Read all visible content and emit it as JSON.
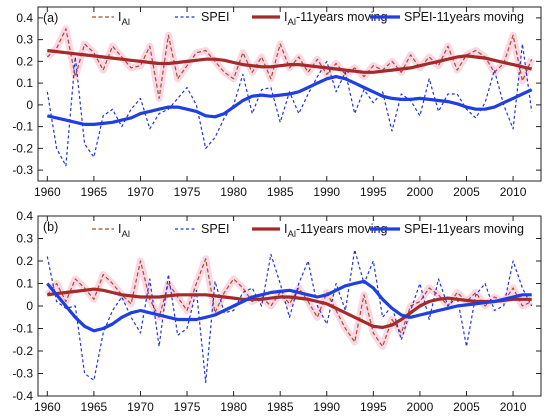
{
  "colors": {
    "ial_dashed": "#a0522d",
    "spei_dashed": "#2233dd",
    "ial_moving": "#a52a2a",
    "spei_moving": "#1f3fe0",
    "highlight": "#f7b4d0",
    "axes": "#222222"
  },
  "chart_data": [
    {
      "type": "line",
      "panel_label": "(a)",
      "legend": {
        "placement": "top",
        "entries": [
          {
            "base": "I",
            "sub": "Al",
            "suffix": ""
          },
          {
            "base": "SPEI",
            "sub": "",
            "suffix": ""
          },
          {
            "base": "I",
            "sub": "Al",
            "suffix": "-11years moving"
          },
          {
            "base": "SPEI-11years moving",
            "sub": "",
            "suffix": ""
          }
        ]
      },
      "xlim": [
        1959,
        2013
      ],
      "ylim": [
        -0.35,
        0.45
      ],
      "xticks": [
        1960,
        1965,
        1970,
        1975,
        1980,
        1985,
        1990,
        1995,
        2000,
        2005,
        2010
      ],
      "xtick_labels": [
        "1960",
        "1965",
        "1970",
        "1975",
        "1980",
        "1985",
        "1990",
        "1995",
        "2000",
        "2005",
        "2010"
      ],
      "yticks": [
        -0.3,
        -0.2,
        -0.1,
        0,
        0.1,
        0.2,
        0.3,
        0.4
      ],
      "ytick_labels": [
        "-0.3",
        "-0.2",
        "-0.1",
        "0",
        "0.1",
        "0.2",
        "0.3",
        "0.4"
      ],
      "grid": false,
      "x": [
        1960,
        1961,
        1962,
        1963,
        1964,
        1965,
        1966,
        1967,
        1968,
        1969,
        1970,
        1971,
        1972,
        1973,
        1974,
        1975,
        1976,
        1977,
        1978,
        1979,
        1980,
        1981,
        1982,
        1983,
        1984,
        1985,
        1986,
        1987,
        1988,
        1989,
        1990,
        1991,
        1992,
        1993,
        1994,
        1995,
        1996,
        1997,
        1998,
        1999,
        2000,
        2001,
        2002,
        2003,
        2004,
        2005,
        2006,
        2007,
        2008,
        2009,
        2010,
        2011,
        2012
      ],
      "series": [
        {
          "key": "ial",
          "style": "dashed",
          "color_key": "ial_dashed",
          "values": [
            0.22,
            0.26,
            0.35,
            0.13,
            0.28,
            0.24,
            0.16,
            0.27,
            0.22,
            0.17,
            0.18,
            0.27,
            0.03,
            0.32,
            0.12,
            0.18,
            0.24,
            0.25,
            0.2,
            0.15,
            0.12,
            0.24,
            0.15,
            0.22,
            0.12,
            0.28,
            0.17,
            0.22,
            0.15,
            0.21,
            0.14,
            0.19,
            0.14,
            0.17,
            0.13,
            0.18,
            0.16,
            0.2,
            0.15,
            0.23,
            0.17,
            0.22,
            0.18,
            0.27,
            0.16,
            0.23,
            0.25,
            0.22,
            0.15,
            0.19,
            0.32,
            0.11,
            0.21
          ]
        },
        {
          "key": "spei",
          "style": "dashed",
          "color_key": "spei_dashed",
          "values": [
            0.06,
            -0.2,
            -0.28,
            0.22,
            -0.18,
            -0.24,
            -0.05,
            -0.02,
            -0.1,
            -0.02,
            0.03,
            -0.11,
            -0.04,
            -0.02,
            0.03,
            0.08,
            0.0,
            -0.2,
            -0.15,
            -0.06,
            0.0,
            0.14,
            -0.04,
            0.07,
            0.08,
            -0.08,
            0.06,
            -0.04,
            0.05,
            0.13,
            0.2,
            0.06,
            0.15,
            -0.04,
            0.07,
            0.01,
            0.06,
            -0.12,
            0.05,
            0.02,
            -0.05,
            0.12,
            -0.03,
            0.05,
            0.05,
            -0.02,
            -0.06,
            0.01,
            0.16,
            0.0,
            -0.11,
            0.28,
            -0.03
          ]
        },
        {
          "key": "ial_moving",
          "style": "solid",
          "color_key": "ial_moving",
          "values": [
            0.25,
            0.245,
            0.24,
            0.235,
            0.23,
            0.225,
            0.22,
            0.215,
            0.21,
            0.205,
            0.2,
            0.195,
            0.19,
            0.19,
            0.195,
            0.2,
            0.205,
            0.21,
            0.21,
            0.205,
            0.195,
            0.185,
            0.18,
            0.175,
            0.175,
            0.18,
            0.185,
            0.185,
            0.18,
            0.175,
            0.17,
            0.165,
            0.16,
            0.155,
            0.15,
            0.15,
            0.155,
            0.16,
            0.165,
            0.17,
            0.18,
            0.19,
            0.2,
            0.21,
            0.22,
            0.225,
            0.22,
            0.215,
            0.205,
            0.195,
            0.185,
            0.175,
            0.165
          ]
        },
        {
          "key": "spei_moving",
          "style": "solid",
          "color_key": "spei_moving",
          "values": [
            -0.05,
            -0.06,
            -0.07,
            -0.08,
            -0.09,
            -0.09,
            -0.085,
            -0.08,
            -0.07,
            -0.06,
            -0.04,
            -0.03,
            -0.02,
            -0.01,
            -0.01,
            -0.02,
            -0.03,
            -0.05,
            -0.055,
            -0.04,
            -0.01,
            0.02,
            0.04,
            0.045,
            0.04,
            0.045,
            0.05,
            0.06,
            0.08,
            0.1,
            0.12,
            0.13,
            0.12,
            0.1,
            0.08,
            0.06,
            0.04,
            0.03,
            0.025,
            0.025,
            0.03,
            0.025,
            0.02,
            0.015,
            0.005,
            -0.01,
            -0.02,
            -0.02,
            -0.01,
            0.01,
            0.03,
            0.05,
            0.07
          ]
        }
      ]
    },
    {
      "type": "line",
      "panel_label": "(b)",
      "legend": {
        "placement": "top",
        "entries": [
          {
            "base": "I",
            "sub": "Al",
            "suffix": ""
          },
          {
            "base": "SPEI",
            "sub": "",
            "suffix": ""
          },
          {
            "base": "I",
            "sub": "Al",
            "suffix": "-11years moving"
          },
          {
            "base": "SPEI-11years moving",
            "sub": "",
            "suffix": ""
          }
        ]
      },
      "xlim": [
        1959,
        2013
      ],
      "ylim": [
        -0.4,
        0.4
      ],
      "xticks": [
        1960,
        1965,
        1970,
        1975,
        1980,
        1985,
        1990,
        1995,
        2000,
        2005,
        2010
      ],
      "xtick_labels": [
        "1960",
        "1965",
        "1970",
        "1975",
        "1980",
        "1985",
        "1990",
        "1995",
        "2000",
        "2005",
        "2010"
      ],
      "yticks": [
        -0.4,
        -0.3,
        -0.2,
        -0.1,
        0,
        0.1,
        0.2,
        0.3,
        0.4
      ],
      "ytick_labels": [
        "-0.4",
        "-0.3",
        "-0.2",
        "-0.1",
        "0",
        "0.1",
        "0.2",
        "0.3",
        "0.4"
      ],
      "grid": false,
      "x": [
        1960,
        1961,
        1962,
        1963,
        1964,
        1965,
        1966,
        1967,
        1968,
        1969,
        1970,
        1971,
        1972,
        1973,
        1974,
        1975,
        1976,
        1977,
        1978,
        1979,
        1980,
        1981,
        1982,
        1983,
        1984,
        1985,
        1986,
        1987,
        1988,
        1989,
        1990,
        1991,
        1992,
        1993,
        1994,
        1995,
        1996,
        1997,
        1998,
        1999,
        2000,
        2001,
        2002,
        2003,
        2004,
        2005,
        2006,
        2007,
        2008,
        2009,
        2010,
        2011,
        2012
      ],
      "series": [
        {
          "key": "ial",
          "style": "dashed",
          "color_key": "ial_dashed",
          "values": [
            0.05,
            0.1,
            0.02,
            0.12,
            0.08,
            0.03,
            0.14,
            0.1,
            0.05,
            0.01,
            0.2,
            0.03,
            -0.05,
            0.1,
            0.04,
            -0.02,
            0.1,
            0.21,
            -0.03,
            0.06,
            0.12,
            0.08,
            0.02,
            0.04,
            0.0,
            0.06,
            0.01,
            0.08,
            0.02,
            -0.05,
            0.06,
            -0.02,
            -0.1,
            -0.16,
            0.05,
            -0.12,
            -0.18,
            -0.06,
            -0.12,
            0.0,
            0.02,
            0.08,
            0.05,
            0.0,
            0.06,
            0.02,
            0.06,
            0.0,
            0.04,
            0.02,
            0.08,
            0.0,
            0.02
          ]
        },
        {
          "key": "spei",
          "style": "dashed",
          "color_key": "spei_dashed",
          "values": [
            0.22,
            0.02,
            -0.01,
            0.0,
            -0.3,
            -0.33,
            -0.12,
            -0.02,
            0.04,
            -0.05,
            -0.12,
            0.12,
            -0.18,
            0.14,
            -0.13,
            -0.1,
            0.07,
            -0.34,
            0.11,
            -0.03,
            -0.02,
            0.06,
            0.08,
            0.0,
            0.23,
            0.1,
            -0.05,
            0.1,
            0.2,
            0.0,
            -0.08,
            0.1,
            -0.02,
            0.25,
            0.1,
            0.2,
            -0.05,
            0.0,
            -0.15,
            -0.02,
            0.1,
            -0.06,
            0.12,
            0.0,
            0.04,
            -0.18,
            0.05,
            0.1,
            -0.02,
            0.0,
            0.2,
            0.08,
            0.0
          ]
        },
        {
          "key": "ial_moving",
          "style": "solid",
          "color_key": "ial_moving",
          "values": [
            0.05,
            0.055,
            0.06,
            0.065,
            0.07,
            0.075,
            0.07,
            0.06,
            0.05,
            0.045,
            0.04,
            0.04,
            0.04,
            0.045,
            0.05,
            0.05,
            0.05,
            0.05,
            0.045,
            0.04,
            0.035,
            0.03,
            0.03,
            0.03,
            0.035,
            0.04,
            0.04,
            0.035,
            0.03,
            0.02,
            0.01,
            -0.01,
            -0.03,
            -0.05,
            -0.07,
            -0.09,
            -0.095,
            -0.085,
            -0.06,
            -0.03,
            0.0,
            0.02,
            0.03,
            0.035,
            0.03,
            0.025,
            0.02,
            0.02,
            0.02,
            0.025,
            0.03,
            0.03,
            0.03
          ]
        },
        {
          "key": "spei_moving",
          "style": "solid",
          "color_key": "spei_moving",
          "values": [
            0.1,
            0.05,
            0.0,
            -0.05,
            -0.09,
            -0.11,
            -0.1,
            -0.08,
            -0.05,
            -0.03,
            -0.02,
            -0.03,
            -0.04,
            -0.05,
            -0.06,
            -0.06,
            -0.06,
            -0.05,
            -0.04,
            -0.02,
            0.0,
            0.02,
            0.04,
            0.05,
            0.06,
            0.065,
            0.07,
            0.06,
            0.05,
            0.04,
            0.05,
            0.07,
            0.09,
            0.1,
            0.11,
            0.08,
            0.03,
            -0.01,
            -0.04,
            -0.05,
            -0.04,
            -0.03,
            -0.02,
            -0.01,
            0.0,
            0.005,
            0.01,
            0.015,
            0.02,
            0.03,
            0.04,
            0.05,
            0.05
          ]
        }
      ]
    }
  ]
}
